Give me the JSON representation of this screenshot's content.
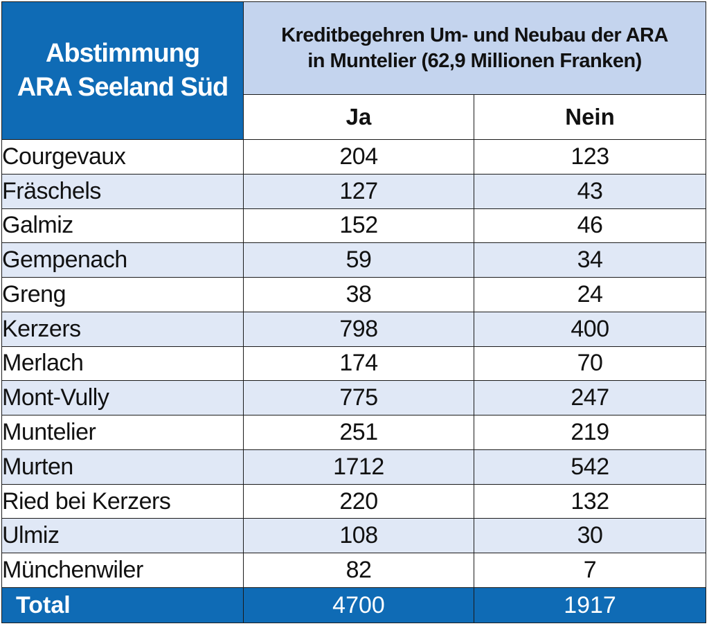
{
  "table": {
    "corner_title": [
      "Abstimmung",
      "ARA Seeland Süd"
    ],
    "question": [
      "Kreditbegehren Um- und Neubau der ARA",
      "in Muntelier (62,9 Millionen Franken)"
    ],
    "columns": [
      "Ja",
      "Nein"
    ]
  },
  "chart_data": {
    "type": "table",
    "title": "Abstimmung ARA Seeland Süd",
    "subtitle": "Kreditbegehren Um- und Neubau der ARA in Muntelier (62,9 Millionen Franken)",
    "series": [
      {
        "name": "Ja",
        "values": [
          204,
          127,
          152,
          59,
          38,
          798,
          174,
          775,
          251,
          1712,
          220,
          108,
          82
        ]
      },
      {
        "name": "Nein",
        "values": [
          123,
          43,
          46,
          34,
          24,
          400,
          70,
          247,
          219,
          542,
          132,
          30,
          7
        ]
      }
    ],
    "rows": [
      {
        "name": "Courgevaux",
        "ja": "204",
        "nein": "123"
      },
      {
        "name": "Fräschels",
        "ja": "127",
        "nein": "43"
      },
      {
        "name": "Galmiz",
        "ja": "152",
        "nein": "46"
      },
      {
        "name": "Gempenach",
        "ja": "59",
        "nein": "34"
      },
      {
        "name": "Greng",
        "ja": "38",
        "nein": "24"
      },
      {
        "name": "Kerzers",
        "ja": "798",
        "nein": "400"
      },
      {
        "name": "Merlach",
        "ja": "174",
        "nein": "70"
      },
      {
        "name": "Mont-Vully",
        "ja": "775",
        "nein": "247"
      },
      {
        "name": "Muntelier",
        "ja": "251",
        "nein": "219"
      },
      {
        "name": "Murten",
        "ja": "1712",
        "nein": "542"
      },
      {
        "name": "Ried bei Kerzers",
        "ja": "220",
        "nein": "132"
      },
      {
        "name": "Ulmiz",
        "ja": "108",
        "nein": "30"
      },
      {
        "name": "Münchenwiler",
        "ja": "82",
        "nein": "7"
      }
    ],
    "total": {
      "label": "Total",
      "ja": "4700",
      "nein": "1917"
    }
  },
  "colors": {
    "header_blue": "#0f6bb5",
    "question_bg": "#c4d4ee",
    "row_alt_bg": "#e0e8f6",
    "total_bg": "#0f6bb5"
  }
}
